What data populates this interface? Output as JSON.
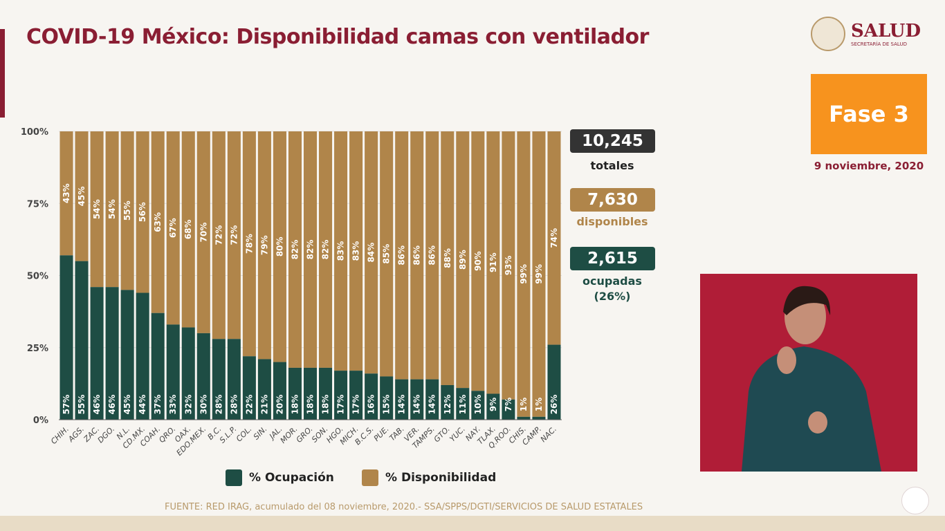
{
  "title": "COVID-19 México: Disponibilidad camas con ventilador",
  "logo": {
    "name": "SALUD",
    "subtitle": "SECRETARÍA DE SALUD"
  },
  "phase": "Fase 3",
  "date": "9 noviembre, 2020",
  "stats": {
    "total": "10,245",
    "total_label": "totales",
    "available": "7,630",
    "available_label": "disponibles",
    "occupied": "2,615",
    "occupied_label": "ocupadas",
    "occupied_pct": "(26%)"
  },
  "colors": {
    "occupancy": "#1e4d44",
    "availability": "#b0854a",
    "title": "#8a1e33"
  },
  "source": "FUENTE: RED IRAG, acumulado del 08 noviembre, 2020.-  SSA/SPPS/DGTI/SERVICIOS DE SALUD ESTATALES",
  "chart_data": {
    "type": "bar",
    "stacked": true,
    "ylim": [
      0,
      100
    ],
    "yticks": [
      "0%",
      "25%",
      "50%",
      "75%",
      "100%"
    ],
    "categories": [
      "CHIH.",
      "AGS.",
      "ZAC.",
      "DGO.",
      "N.L.",
      "CD.MX.",
      "COAH.",
      "QRO.",
      "OAX.",
      "EDO.MEX.",
      "B.C.",
      "S.L.P.",
      "COL.",
      "SIN.",
      "JAL.",
      "MOR.",
      "GRO.",
      "SON.",
      "HGO.",
      "MICH.",
      "B.C.S.",
      "PUE.",
      "TAB.",
      "VER.",
      "TAMPS.",
      "GTO.",
      "YUC.",
      "NAY.",
      "TLAX.",
      "Q.ROO.",
      "CHIS.",
      "CAMP.",
      "NAC."
    ],
    "series": [
      {
        "name": "% Ocupación",
        "values": [
          57,
          55,
          46,
          46,
          45,
          44,
          37,
          33,
          32,
          30,
          28,
          28,
          22,
          21,
          20,
          18,
          18,
          18,
          17,
          17,
          16,
          15,
          14,
          14,
          14,
          12,
          11,
          10,
          9,
          7,
          1,
          1,
          26
        ]
      },
      {
        "name": "% Disponibilidad",
        "values": [
          43,
          45,
          54,
          54,
          55,
          56,
          63,
          67,
          68,
          70,
          72,
          72,
          78,
          79,
          80,
          82,
          82,
          82,
          83,
          83,
          84,
          85,
          86,
          86,
          86,
          88,
          89,
          90,
          91,
          93,
          99,
          99,
          74
        ]
      }
    ],
    "legend": "bottom"
  }
}
